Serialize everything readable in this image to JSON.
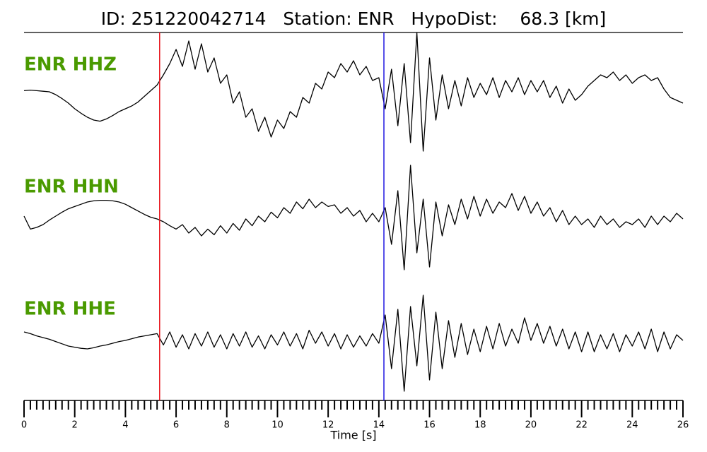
{
  "chart_data": {
    "type": "seismogram",
    "title": "ID: 251220042714   Station: ENR   HypoDist:    68.3 [km]",
    "xlabel": "Time [s]",
    "xlim": [
      0,
      26
    ],
    "xticks": [
      0,
      2,
      4,
      6,
      8,
      10,
      12,
      14,
      16,
      18,
      20,
      22,
      24,
      26
    ],
    "xminor": 0.25,
    "markers": [
      {
        "x": 5.35,
        "color": "#e8141c"
      },
      {
        "x": 14.2,
        "color": "#1e14e0"
      }
    ],
    "x": [
      0,
      0.25,
      0.5,
      0.75,
      1,
      1.25,
      1.5,
      1.75,
      2,
      2.25,
      2.5,
      2.75,
      3,
      3.25,
      3.5,
      3.75,
      4,
      4.25,
      4.5,
      4.75,
      5,
      5.25,
      5.5,
      5.75,
      6,
      6.25,
      6.5,
      6.75,
      7,
      7.25,
      7.5,
      7.75,
      8,
      8.25,
      8.5,
      8.75,
      9,
      9.25,
      9.5,
      9.75,
      10,
      10.25,
      10.5,
      10.75,
      11,
      11.25,
      11.5,
      11.75,
      12,
      12.25,
      12.5,
      12.75,
      13,
      13.25,
      13.5,
      13.75,
      14,
      14.25,
      14.5,
      14.75,
      15,
      15.25,
      15.5,
      15.75,
      16,
      16.25,
      16.5,
      16.75,
      17,
      17.25,
      17.5,
      17.75,
      18,
      18.25,
      18.5,
      18.75,
      19,
      19.25,
      19.5,
      19.75,
      20,
      20.25,
      20.5,
      20.75,
      21,
      21.25,
      21.5,
      21.75,
      22,
      22.25,
      22.5,
      22.75,
      23,
      23.25,
      23.5,
      23.75,
      24,
      24.25,
      24.5,
      24.75,
      25,
      25.25,
      25.5,
      25.75,
      26
    ],
    "series": [
      {
        "name": "ENR HHZ",
        "color": "#000000",
        "values": [
          0.02,
          0.03,
          0.02,
          0.01,
          0.0,
          -0.05,
          -0.12,
          -0.2,
          -0.3,
          -0.38,
          -0.45,
          -0.5,
          -0.52,
          -0.48,
          -0.42,
          -0.35,
          -0.3,
          -0.25,
          -0.18,
          -0.08,
          0.02,
          0.12,
          0.3,
          0.5,
          0.75,
          0.45,
          0.9,
          0.4,
          0.85,
          0.35,
          0.6,
          0.15,
          0.3,
          -0.2,
          0.0,
          -0.45,
          -0.3,
          -0.7,
          -0.45,
          -0.8,
          -0.5,
          -0.65,
          -0.35,
          -0.45,
          -0.1,
          -0.2,
          0.15,
          0.05,
          0.35,
          0.25,
          0.5,
          0.35,
          0.55,
          0.3,
          0.45,
          0.2,
          0.25,
          -0.3,
          0.4,
          -0.6,
          0.5,
          -0.9,
          1.05,
          -1.05,
          0.6,
          -0.5,
          0.3,
          -0.3,
          0.2,
          -0.25,
          0.25,
          -0.1,
          0.15,
          -0.05,
          0.25,
          -0.1,
          0.2,
          0.0,
          0.25,
          -0.05,
          0.2,
          0.0,
          0.2,
          -0.1,
          0.1,
          -0.2,
          0.05,
          -0.15,
          -0.05,
          0.1,
          0.2,
          0.3,
          0.25,
          0.35,
          0.2,
          0.3,
          0.15,
          0.25,
          0.3,
          0.2,
          0.25,
          0.05,
          -0.1,
          -0.15,
          -0.2
        ]
      },
      {
        "name": "ENR HHN",
        "color": "#000000",
        "values": [
          0.05,
          -0.18,
          -0.15,
          -0.1,
          -0.02,
          0.05,
          0.12,
          0.18,
          0.22,
          0.26,
          0.3,
          0.32,
          0.33,
          0.33,
          0.32,
          0.3,
          0.26,
          0.2,
          0.14,
          0.08,
          0.03,
          0.0,
          -0.05,
          -0.12,
          -0.18,
          -0.1,
          -0.25,
          -0.15,
          -0.3,
          -0.18,
          -0.28,
          -0.12,
          -0.25,
          -0.08,
          -0.2,
          0.0,
          -0.12,
          0.05,
          -0.05,
          0.12,
          0.02,
          0.2,
          0.1,
          0.3,
          0.18,
          0.35,
          0.2,
          0.3,
          0.22,
          0.25,
          0.1,
          0.2,
          0.05,
          0.15,
          -0.05,
          0.1,
          -0.05,
          0.2,
          -0.45,
          0.5,
          -0.9,
          0.95,
          -0.6,
          0.35,
          -0.85,
          0.3,
          -0.3,
          0.25,
          -0.1,
          0.35,
          0.0,
          0.4,
          0.05,
          0.35,
          0.1,
          0.3,
          0.2,
          0.45,
          0.15,
          0.4,
          0.1,
          0.3,
          0.05,
          0.2,
          -0.05,
          0.15,
          -0.1,
          0.05,
          -0.1,
          0.0,
          -0.15,
          0.05,
          -0.1,
          0.0,
          -0.15,
          -0.05,
          -0.1,
          0.0,
          -0.15,
          0.05,
          -0.1,
          0.05,
          -0.05,
          0.1,
          0.0
        ]
      },
      {
        "name": "ENR HHE",
        "color": "#000000",
        "values": [
          0.15,
          0.12,
          0.08,
          0.05,
          0.02,
          -0.02,
          -0.06,
          -0.1,
          -0.12,
          -0.14,
          -0.15,
          -0.13,
          -0.1,
          -0.08,
          -0.05,
          -0.02,
          0.0,
          0.03,
          0.06,
          0.08,
          0.1,
          0.12,
          -0.08,
          0.15,
          -0.12,
          0.1,
          -0.15,
          0.12,
          -0.1,
          0.15,
          -0.12,
          0.1,
          -0.15,
          0.12,
          -0.1,
          0.15,
          -0.12,
          0.08,
          -0.15,
          0.1,
          -0.08,
          0.15,
          -0.1,
          0.12,
          -0.15,
          0.18,
          -0.05,
          0.15,
          -0.1,
          0.12,
          -0.15,
          0.1,
          -0.12,
          0.08,
          -0.1,
          0.12,
          -0.05,
          0.45,
          -0.5,
          0.55,
          -0.9,
          0.6,
          -0.45,
          0.8,
          -0.7,
          0.5,
          -0.5,
          0.35,
          -0.3,
          0.3,
          -0.25,
          0.2,
          -0.2,
          0.25,
          -0.15,
          0.3,
          -0.1,
          0.2,
          -0.05,
          0.4,
          0.0,
          0.3,
          -0.05,
          0.25,
          -0.1,
          0.2,
          -0.15,
          0.15,
          -0.2,
          0.15,
          -0.2,
          0.1,
          -0.15,
          0.12,
          -0.2,
          0.1,
          -0.1,
          0.15,
          -0.15,
          0.2,
          -0.2,
          0.15,
          -0.15,
          0.1,
          0.0
        ]
      }
    ]
  }
}
